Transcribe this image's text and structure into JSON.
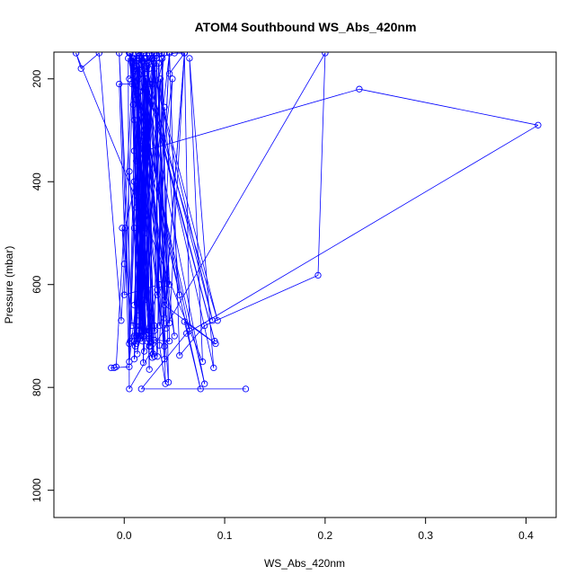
{
  "chart_data": {
    "type": "line",
    "title": "ATOM4 Southbound WS_Abs_420nm",
    "xlabel": "WS_Abs_420nm",
    "ylabel": "Pressure (mbar)",
    "xlim": [
      -0.07,
      0.43
    ],
    "ylim": [
      1053,
      148
    ],
    "y_reversed": true,
    "x_ticks": [
      0.0,
      0.1,
      0.2,
      0.3,
      0.4
    ],
    "x_tick_labels": [
      "0.0",
      "0.1",
      "0.2",
      "0.3",
      "0.4"
    ],
    "y_ticks": [
      200,
      400,
      600,
      800,
      1000
    ],
    "y_tick_labels": [
      "200",
      "400",
      "600",
      "800",
      "1000"
    ],
    "grid": false,
    "legend": "none",
    "color": "#0000ff",
    "marker": "open-circle",
    "series": [
      {
        "points": [
          [
            0.121,
            803
          ],
          [
            0.017,
            803
          ],
          [
            0.062,
            695
          ],
          [
            0.412,
            290
          ],
          [
            0.234,
            220
          ],
          [
            0.02,
            340
          ],
          [
            0.014,
            150
          ],
          [
            0.04,
            640
          ],
          [
            0.091,
            715
          ],
          [
            0.06,
            672
          ],
          [
            0.076,
            803
          ],
          [
            0.008,
            210
          ],
          [
            -0.005,
            210
          ],
          [
            0.005,
            760
          ],
          [
            -0.013,
            762
          ],
          [
            -0.01,
            762
          ],
          [
            -0.008,
            760
          ],
          [
            0.009,
            170
          ],
          [
            0.018,
            165
          ],
          [
            0.03,
            708
          ],
          [
            0.045,
            710
          ],
          [
            0.037,
            150
          ],
          [
            0.011,
            180
          ],
          [
            0.006,
            150
          ],
          [
            0.012,
            175
          ],
          [
            0.022,
            200
          ],
          [
            0.016,
            680
          ],
          [
            0.025,
            720
          ],
          [
            0.03,
            170
          ],
          [
            0.042,
            685
          ],
          [
            0.034,
            170
          ],
          [
            0.041,
            793
          ],
          [
            0.035,
            718
          ],
          [
            0.048,
            200
          ],
          [
            0.013,
            735
          ],
          [
            0.028,
            210
          ],
          [
            0.019,
            752
          ],
          [
            0.021,
            215
          ],
          [
            0.04,
            745
          ],
          [
            0.03,
            180
          ],
          [
            0.01,
            745
          ],
          [
            0.015,
            160
          ],
          [
            0.025,
            765
          ],
          [
            0.023,
            175
          ],
          [
            0.029,
            735
          ],
          [
            0.017,
            160
          ],
          [
            0.026,
            720
          ],
          [
            0.011,
            185
          ],
          [
            0.027,
            712
          ],
          [
            0.014,
            180
          ],
          [
            0.016,
            705
          ],
          [
            0.02,
            190
          ],
          [
            0.05,
            700
          ],
          [
            0.005,
            150
          ],
          [
            0.065,
            690
          ],
          [
            0.06,
            150
          ],
          [
            0.04,
            665
          ],
          [
            0.06,
            150
          ],
          [
            0.045,
            675
          ],
          [
            0.032,
            160
          ],
          [
            0.033,
            620
          ],
          [
            0.045,
            150
          ],
          [
            0.015,
            660
          ],
          [
            0.008,
            160
          ],
          [
            0.033,
            740
          ],
          [
            0.038,
            160
          ],
          [
            0.044,
            790
          ],
          [
            0.02,
            170
          ],
          [
            0.028,
            742
          ],
          [
            0.009,
            160
          ],
          [
            0.042,
            598
          ],
          [
            0.021,
            160
          ],
          [
            0.045,
            600
          ],
          [
            0.036,
            200
          ],
          [
            0.02,
            630
          ],
          [
            0.009,
            250
          ],
          [
            0.04,
            720
          ],
          [
            0.006,
            150
          ],
          [
            0.017,
            690
          ],
          [
            0.013,
            165
          ],
          [
            0.019,
            700
          ],
          [
            0.024,
            168
          ],
          [
            0.012,
            715
          ],
          [
            0.008,
            160
          ],
          [
            0.021,
            690
          ],
          [
            0.012,
            160
          ],
          [
            0.005,
            715
          ],
          [
            0.015,
            155
          ],
          [
            0.01,
            700
          ],
          [
            0.03,
            150
          ],
          [
            0.014,
            705
          ],
          [
            0.025,
            160
          ],
          [
            0.02,
            500
          ],
          [
            0.01,
            160
          ],
          [
            0.0,
            620
          ],
          [
            0.035,
            600
          ],
          [
            0.02,
            700
          ],
          [
            0.015,
            560
          ],
          [
            0.03,
            680
          ],
          [
            0.02,
            540
          ],
          [
            0.025,
            720
          ],
          [
            0.018,
            490
          ],
          [
            0.01,
            700
          ],
          [
            0.02,
            470
          ],
          [
            0.025,
            690
          ],
          [
            0.012,
            450
          ],
          [
            0.02,
            730
          ],
          [
            0.015,
            430
          ],
          [
            0.03,
            740
          ],
          [
            0.01,
            400
          ],
          [
            0.018,
            710
          ],
          [
            0.005,
            380
          ],
          [
            0.02,
            690
          ],
          [
            0.012,
            360
          ],
          [
            0.025,
            705
          ],
          [
            0.01,
            340
          ],
          [
            0.02,
            690
          ],
          [
            0.016,
            320
          ],
          [
            0.011,
            720
          ],
          [
            0.02,
            300
          ],
          [
            0.015,
            690
          ],
          [
            0.01,
            280
          ],
          [
            0.022,
            710
          ],
          [
            0.015,
            260
          ],
          [
            0.015,
            700
          ],
          [
            0.012,
            240
          ],
          [
            0.018,
            690
          ],
          [
            0.02,
            220
          ],
          [
            0.012,
            700
          ],
          [
            0.015,
            200
          ],
          [
            0.022,
            180
          ],
          [
            0.028,
            160
          ],
          [
            0.03,
            150
          ],
          [
            0.01,
            490
          ],
          [
            0.005,
            750
          ],
          [
            0.04,
            150
          ],
          [
            0.001,
            490
          ],
          [
            0.006,
            710
          ],
          [
            -0.005,
            150
          ],
          [
            0.008,
            680
          ],
          [
            -0.002,
            490
          ],
          [
            0.0,
            560
          ],
          [
            -0.003,
            670
          ],
          [
            -0.025,
            150
          ],
          [
            -0.043,
            180
          ],
          [
            -0.048,
            150
          ],
          [
            0.078,
            750
          ],
          [
            0.065,
            160
          ],
          [
            0.089,
            762
          ],
          [
            0.02,
            160
          ],
          [
            0.088,
            670
          ],
          [
            0.025,
            150
          ],
          [
            0.093,
            670
          ],
          [
            0.015,
            160
          ],
          [
            0.09,
            710
          ],
          [
            0.015,
            150
          ],
          [
            0.08,
            793
          ],
          [
            0.004,
            160
          ],
          [
            0.005,
            803
          ],
          [
            0.2,
            150
          ],
          [
            0.193,
            582
          ],
          [
            0.08,
            680
          ],
          [
            0.055,
            738
          ],
          [
            0.045,
            150
          ],
          [
            0.033,
            610
          ],
          [
            0.04,
            255
          ],
          [
            0.055,
            620
          ],
          [
            0.015,
            225
          ],
          [
            0.016,
            700
          ],
          [
            0.025,
            210
          ],
          [
            0.03,
            150
          ],
          [
            0.005,
            200
          ],
          [
            0.02,
            150
          ],
          [
            0.035,
            150
          ],
          [
            0.03,
            690
          ],
          [
            0.019,
            150
          ],
          [
            0.025,
            705
          ],
          [
            0.005,
            150
          ],
          [
            0.04,
            630
          ],
          [
            0.03,
            150
          ],
          [
            0.01,
            640
          ],
          [
            0.02,
            160
          ],
          [
            0.035,
            680
          ],
          [
            0.03,
            170
          ],
          [
            0.01,
            710
          ],
          [
            0.025,
            180
          ],
          [
            0.022,
            160
          ],
          [
            0.03,
            160
          ],
          [
            0.05,
            150
          ],
          [
            0.06,
            150
          ],
          [
            0.045,
            190
          ]
        ]
      }
    ]
  }
}
